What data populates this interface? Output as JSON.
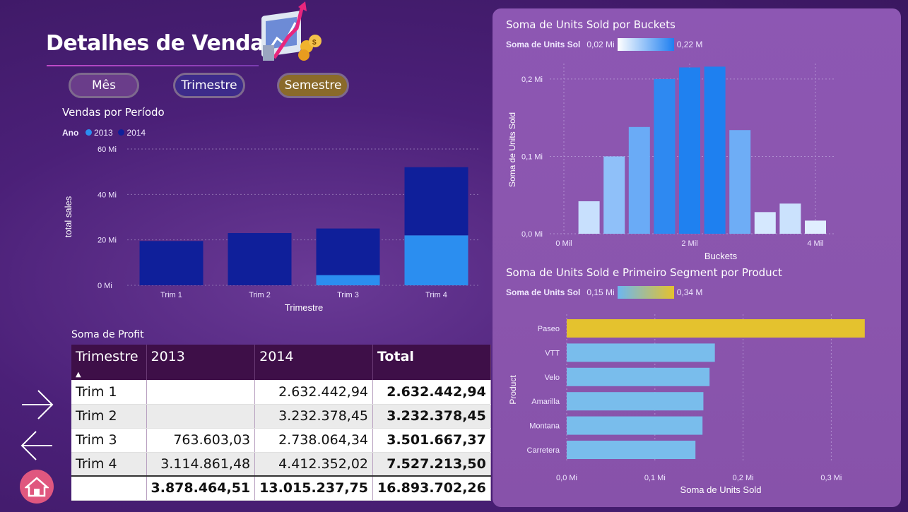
{
  "page": {
    "title": "Detalhes de Vendas",
    "buttons": {
      "mes": "Mês",
      "trimestre": "Trimestre",
      "semestre": "Semestre"
    },
    "colors": {
      "c2013": "#2b8ef0",
      "c2014": "#0f1f9a",
      "accent": "#e0577f"
    }
  },
  "sales_chart": {
    "title": "Vendas por Período",
    "legend_title": "Ano",
    "legend": [
      "2013",
      "2014"
    ]
  },
  "profit_table": {
    "title": "Soma de Profit",
    "headers": [
      "Trimestre",
      "2013",
      "2014",
      "Total"
    ],
    "rows": [
      [
        "Trim 1",
        "",
        "2.632.442,94",
        "2.632.442,94"
      ],
      [
        "Trim 2",
        "",
        "3.232.378,45",
        "3.232.378,45"
      ],
      [
        "Trim 3",
        "763.603,03",
        "2.738.064,34",
        "3.501.667,37"
      ],
      [
        "Trim 4",
        "3.114.861,48",
        "4.412.352,02",
        "7.527.213,50"
      ]
    ],
    "total_row": [
      "",
      "3.878.464,51",
      "13.015.237,75",
      "16.893.702,26"
    ]
  },
  "buckets_chart": {
    "title": "Soma de Units Sold por Buckets",
    "legend_label": "Soma de Units Sol",
    "legend_min": "0,02 Mi",
    "legend_max": "0,22 M"
  },
  "product_chart": {
    "title": "Soma de Units Sold e Primeiro Segment por Product",
    "legend_label": "Soma de Units Sol",
    "legend_min": "0,15 Mi",
    "legend_max": "0,34 M"
  },
  "chart_data": [
    {
      "type": "bar",
      "title": "Vendas por Período",
      "xlabel": "Trimestre",
      "ylabel": "total sales",
      "categories": [
        "Trim 1",
        "Trim 2",
        "Trim 3",
        "Trim 4"
      ],
      "series": [
        {
          "name": "2013",
          "values": [
            0,
            0,
            4.5,
            22
          ]
        },
        {
          "name": "2014",
          "values": [
            19.5,
            23,
            20.5,
            30
          ]
        }
      ],
      "stacked": true,
      "yticks": [
        "0 Mi",
        "20 Mi",
        "40 Mi",
        "60 Mi"
      ],
      "ylim": [
        0,
        60
      ],
      "grid": true
    },
    {
      "type": "bar",
      "title": "Soma de Units Sold por Buckets",
      "xlabel": "Buckets",
      "ylabel": "Soma de Units Sold",
      "x": [
        0.4,
        0.8,
        1.2,
        1.6,
        2.0,
        2.4,
        2.8,
        3.2,
        3.6,
        4.0
      ],
      "values": [
        0.042,
        0.1,
        0.138,
        0.2,
        0.215,
        0.216,
        0.134,
        0.028,
        0.039,
        0.017
      ],
      "xticks": [
        "0 Mil",
        "2 Mil",
        "4 Mil"
      ],
      "yticks": [
        "0,0 Mi",
        "0,1 Mi",
        "0,2 Mi"
      ],
      "ylim": [
        0,
        0.22
      ],
      "grid": true
    },
    {
      "type": "bar",
      "orientation": "horizontal",
      "title": "Soma de Units Sold e Primeiro Segment por Product",
      "xlabel": "Soma de Units Sold",
      "ylabel": "Product",
      "categories": [
        "Paseo",
        "VTT",
        "Velo",
        "Amarilla",
        "Montana",
        "Carretera"
      ],
      "values": [
        0.338,
        0.168,
        0.162,
        0.155,
        0.154,
        0.146
      ],
      "xticks": [
        "0,0 Mi",
        "0,1 Mi",
        "0,2 Mi",
        "0,3 Mi"
      ],
      "xlim": [
        0,
        0.34
      ],
      "grid": true
    }
  ]
}
